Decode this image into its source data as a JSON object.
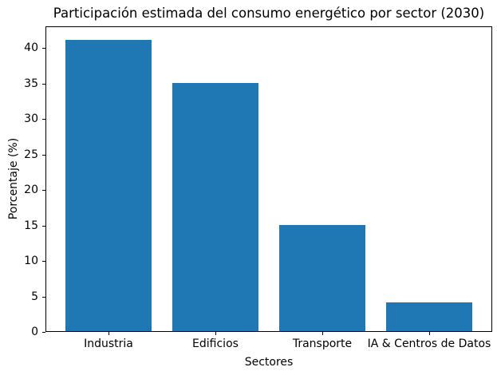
{
  "chart_data": {
    "type": "bar",
    "title": "Participación estimada del consumo energético por sector (2030)",
    "categories": [
      "Industria",
      "Edificios",
      "Transporte",
      "IA & Centros de Datos"
    ],
    "values": [
      41,
      35,
      15,
      4
    ],
    "xlabel": "Sectores",
    "ylabel": "Porcentaje (%)",
    "ylim": [
      0,
      43.05
    ],
    "yticks": [
      0,
      5,
      10,
      15,
      20,
      25,
      30,
      35,
      40
    ],
    "bar_color": "#1f77b4",
    "axis_color": "#000000",
    "background_color": "#ffffff",
    "grid": false,
    "legend_position": "none"
  }
}
